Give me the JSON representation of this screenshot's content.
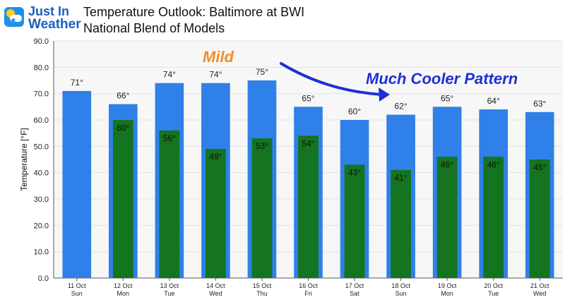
{
  "logo": {
    "line1": "Just In",
    "line2": "Weather",
    "icon": "sun-cloud-snowflake-icon"
  },
  "header": {
    "title": "Temperature Outlook: Baltimore at BWI",
    "subtitle": "National Blend of Models"
  },
  "annotations": {
    "mild": "Mild",
    "cooler": "Much Cooler Pattern",
    "mild_color": "#f28c28",
    "cooler_color": "#1f2fd6"
  },
  "chart_data": {
    "type": "bar",
    "ylabel": "Temperature [°F]",
    "xlabel": "",
    "ylim": [
      0,
      90
    ],
    "yticks": [
      "0.0",
      "10.0",
      "20.0",
      "30.0",
      "40.0",
      "50.0",
      "60.0",
      "70.0",
      "80.0",
      "90.0"
    ],
    "grid": true,
    "categories": [
      [
        "11 Oct",
        "Sun"
      ],
      [
        "12 Oct",
        "Mon"
      ],
      [
        "13 Oct",
        "Tue"
      ],
      [
        "14 Oct",
        "Wed"
      ],
      [
        "15 Oct",
        "Thu"
      ],
      [
        "16 Oct",
        "Fri"
      ],
      [
        "17 Oct",
        "Sat"
      ],
      [
        "18 Oct",
        "Sun"
      ],
      [
        "19 Oct",
        "Mon"
      ],
      [
        "20 Oct",
        "Tue"
      ],
      [
        "21 Oct",
        "Wed"
      ]
    ],
    "series": [
      {
        "color": "#2f80e8",
        "values": [
          71,
          66,
          74,
          74,
          75,
          65,
          60,
          62,
          65,
          64,
          63
        ],
        "labels": [
          "71°",
          "66°",
          "74°",
          "74°",
          "75°",
          "65°",
          "60°",
          "62°",
          "65°",
          "64°",
          "63°"
        ]
      },
      {
        "color": "#14741f",
        "values": [
          null,
          60,
          56,
          49,
          53,
          54,
          43,
          41,
          46,
          46,
          45
        ],
        "labels": [
          "",
          "60°",
          "56°",
          "49°",
          "53°",
          "54°",
          "43°",
          "41°",
          "46°",
          "46°",
          "45°"
        ]
      }
    ]
  }
}
